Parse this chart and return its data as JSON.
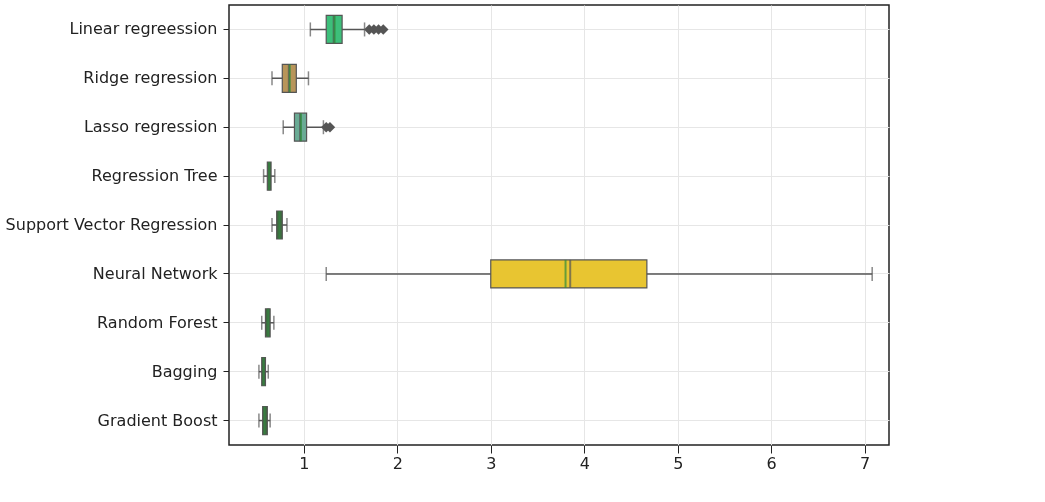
{
  "chart_data": {
    "type": "box",
    "orientation": "horizontal",
    "categories": [
      "Linear regreession",
      "Ridge regression",
      "Lasso regression",
      "Regression Tree",
      "Support Vector Regression",
      "Neural Network",
      "Random Forest",
      "Bagging",
      "Gradient Boost"
    ],
    "colors": [
      "#3dbf7a",
      "#b8955a",
      "#6aab95",
      "#3d6b3d",
      "#3d6b3d",
      "#e8c531",
      "#3d6b3d",
      "#3d6b3d",
      "#3d6b3d"
    ],
    "boxes": [
      {
        "low": 1.07,
        "q1": 1.24,
        "median": 1.32,
        "q3": 1.41,
        "high": 1.65,
        "mean": 1.33,
        "outliers": [
          1.7,
          1.75,
          1.8,
          1.85
        ]
      },
      {
        "low": 0.66,
        "q1": 0.77,
        "median": 0.84,
        "q3": 0.92,
        "high": 1.05,
        "mean": 0.85
      },
      {
        "low": 0.78,
        "q1": 0.9,
        "median": 0.96,
        "q3": 1.03,
        "high": 1.21,
        "mean": 0.97,
        "outliers": [
          1.24,
          1.28
        ]
      },
      {
        "low": 0.57,
        "q1": 0.61,
        "median": 0.63,
        "q3": 0.65,
        "high": 0.69,
        "mean": 0.63
      },
      {
        "low": 0.66,
        "q1": 0.71,
        "median": 0.74,
        "q3": 0.77,
        "high": 0.82,
        "mean": 0.74
      },
      {
        "low": 1.24,
        "q1": 3.0,
        "median": 3.85,
        "q3": 4.67,
        "high": 7.08,
        "mean": 3.8
      },
      {
        "low": 0.55,
        "q1": 0.59,
        "median": 0.62,
        "q3": 0.64,
        "high": 0.68,
        "mean": 0.62
      },
      {
        "low": 0.52,
        "q1": 0.55,
        "median": 0.57,
        "q3": 0.59,
        "high": 0.62,
        "mean": 0.57
      },
      {
        "low": 0.52,
        "q1": 0.56,
        "median": 0.58,
        "q3": 0.61,
        "high": 0.64,
        "mean": 0.58
      }
    ],
    "xlim": [
      0.2,
      7.26
    ],
    "xticks": [
      1,
      2,
      3,
      4,
      5,
      6,
      7
    ],
    "grid": true
  }
}
